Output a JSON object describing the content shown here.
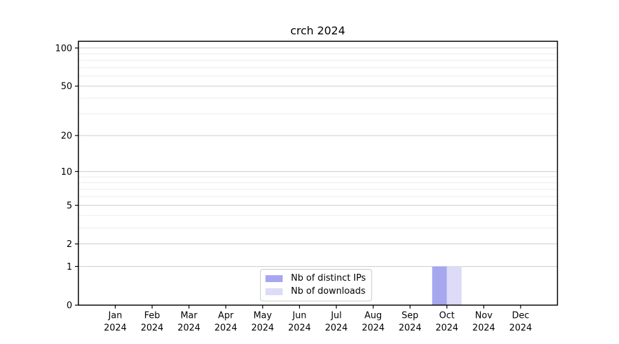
{
  "figure": {
    "background": "#ffffff"
  },
  "chart_data": {
    "type": "bar",
    "title": "crch 2024",
    "x_year": "2024",
    "categories": [
      "Jan",
      "Feb",
      "Mar",
      "Apr",
      "May",
      "Jun",
      "Jul",
      "Aug",
      "Sep",
      "Oct",
      "Nov",
      "Dec"
    ],
    "series": [
      {
        "name": "Nb of distinct IPs",
        "color": "#a7a7f0",
        "values": [
          0,
          0,
          0,
          0,
          0,
          0,
          0,
          0,
          0,
          1,
          0,
          0
        ]
      },
      {
        "name": "Nb of downloads",
        "color": "#dcdcf8",
        "values": [
          0,
          0,
          0,
          0,
          0,
          0,
          0,
          0,
          0,
          1,
          0,
          0
        ]
      }
    ],
    "y_scale": "log1p",
    "y_ticks": [
      100,
      50,
      20,
      10,
      5,
      2,
      1,
      0
    ],
    "y_minor_ticks": [
      90,
      80,
      70,
      60,
      40,
      30,
      9,
      8,
      7,
      6,
      4,
      3
    ],
    "ylim": [
      0,
      113
    ],
    "grid": true,
    "legend_position": "lower center",
    "colors": {
      "major_grid": "#cccccc",
      "minor_grid": "#ececec",
      "axis": "#000000",
      "text": "#000000"
    }
  }
}
